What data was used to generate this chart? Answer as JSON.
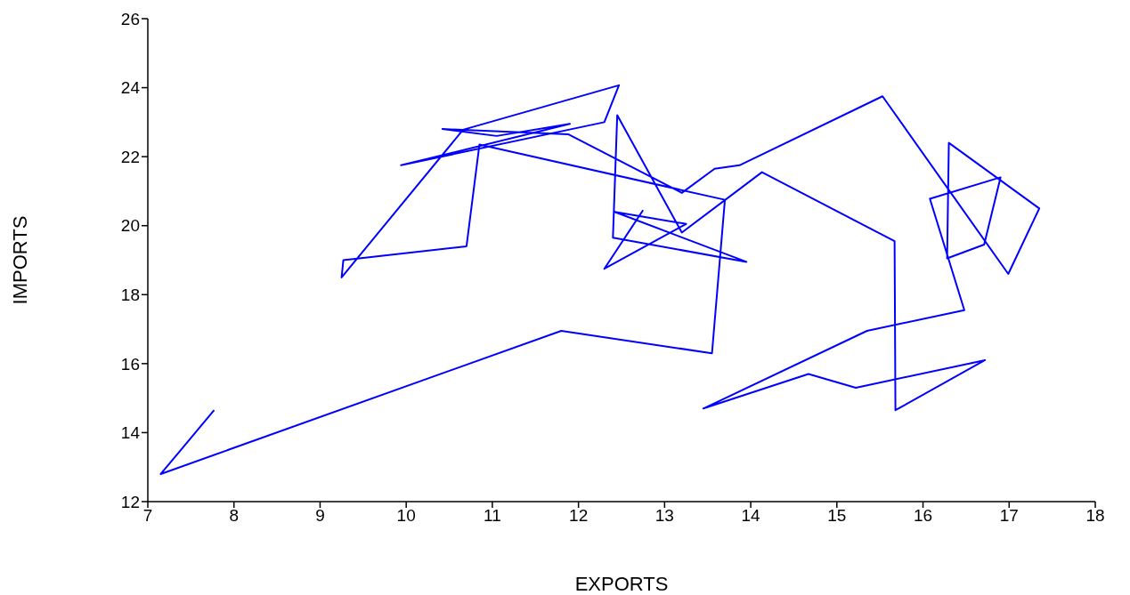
{
  "chart_data": {
    "type": "line",
    "xlabel": "EXPORTS",
    "ylabel": "IMPORTS",
    "color": "#0000ff",
    "grid": false,
    "x": [
      7.77,
      7.15,
      11.8,
      13.55,
      13.7,
      10.85,
      10.7,
      9.27,
      9.25,
      10.66,
      12.47,
      12.3,
      9.94,
      11.9,
      11.05,
      10.42,
      11.88,
      13.2,
      13.58,
      13.87,
      15.53,
      16.99,
      17.35,
      16.3,
      16.28,
      16.71,
      16.9,
      16.08,
      16.48,
      15.35,
      13.45,
      14.67,
      15.22,
      16.72,
      15.68,
      15.67,
      14.13,
      13.2,
      12.45,
      12.4,
      13.95,
      12.42,
      13.25,
      12.3,
      12.75
    ],
    "values": [
      14.65,
      12.8,
      16.95,
      16.3,
      20.75,
      22.35,
      19.4,
      19.0,
      18.5,
      22.78,
      24.07,
      23.0,
      21.75,
      22.95,
      22.6,
      22.8,
      22.65,
      20.95,
      21.65,
      21.75,
      23.75,
      18.6,
      20.5,
      22.4,
      19.05,
      19.45,
      21.4,
      20.78,
      17.55,
      16.95,
      14.7,
      15.7,
      15.3,
      16.1,
      14.65,
      19.55,
      21.55,
      19.8,
      23.2,
      19.65,
      18.95,
      20.4,
      20.05,
      18.75,
      20.45
    ],
    "xlim": [
      7,
      18
    ],
    "xticks": [
      7,
      8,
      9,
      10,
      11,
      12,
      13,
      14,
      15,
      16,
      17,
      18
    ],
    "ylim": [
      12,
      26
    ],
    "yticks": [
      12,
      14,
      16,
      18,
      20,
      22,
      24,
      26
    ]
  }
}
